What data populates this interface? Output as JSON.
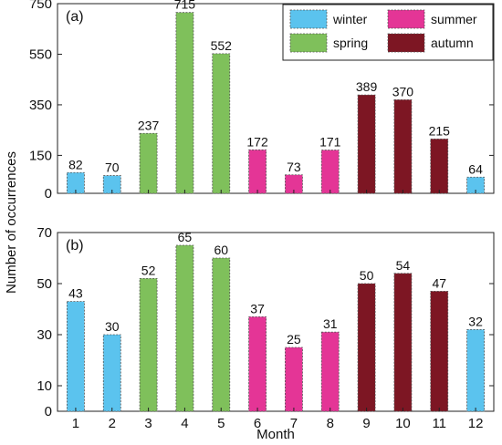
{
  "chart_data": [
    {
      "type": "bar",
      "panel_label": "(a)",
      "categories": [
        "1",
        "2",
        "3",
        "4",
        "5",
        "6",
        "7",
        "8",
        "9",
        "10",
        "11",
        "12"
      ],
      "values": [
        82,
        70,
        237,
        715,
        552,
        172,
        73,
        171,
        389,
        370,
        215,
        64
      ],
      "seasons": [
        "winter",
        "winter",
        "spring",
        "spring",
        "spring",
        "summer",
        "summer",
        "summer",
        "autumn",
        "autumn",
        "autumn",
        "winter"
      ],
      "yticks": [
        0,
        150,
        350,
        550,
        750
      ],
      "ylim": [
        0,
        750
      ],
      "xlabel": "",
      "ylabel": ""
    },
    {
      "type": "bar",
      "panel_label": "(b)",
      "categories": [
        "1",
        "2",
        "3",
        "4",
        "5",
        "6",
        "7",
        "8",
        "9",
        "10",
        "11",
        "12"
      ],
      "values": [
        43,
        30,
        52,
        65,
        60,
        37,
        25,
        31,
        50,
        54,
        47,
        32
      ],
      "seasons": [
        "winter",
        "winter",
        "spring",
        "spring",
        "spring",
        "summer",
        "summer",
        "summer",
        "autumn",
        "autumn",
        "autumn",
        "winter"
      ],
      "yticks": [
        0,
        10,
        30,
        50,
        70
      ],
      "ylim": [
        0,
        70
      ],
      "xlabel": "",
      "ylabel": ""
    }
  ],
  "shared": {
    "xlabel": "Month",
    "ylabel": "Number of occurrences"
  },
  "legend": {
    "placement": "top-right",
    "items": [
      {
        "key": "winter",
        "label": "winter",
        "color": "#5bc3ee"
      },
      {
        "key": "summer",
        "label": "summer",
        "color": "#e43596"
      },
      {
        "key": "spring",
        "label": "spring",
        "color": "#7fc05b"
      },
      {
        "key": "autumn",
        "label": "autumn",
        "color": "#7d1623"
      }
    ]
  }
}
